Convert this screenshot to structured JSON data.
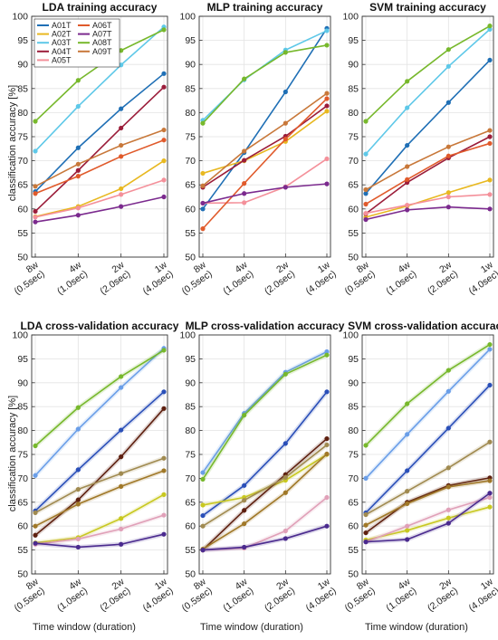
{
  "figure": {
    "ylabel": "classification accuracy [%]",
    "xlabel": "Time window (duration)"
  },
  "legend": {
    "entries": [
      {
        "name": "A01T",
        "color": "#1f6fb5"
      },
      {
        "name": "A02T",
        "color": "#e8b820"
      },
      {
        "name": "A03T",
        "color": "#5ec8e8"
      },
      {
        "name": "A04T",
        "color": "#9b1d3a"
      },
      {
        "name": "A05T",
        "color": "#f4909a"
      },
      {
        "name": "A06T",
        "color": "#e05a2b"
      },
      {
        "name": "A07T",
        "color": "#7b2a8e"
      },
      {
        "name": "A08T",
        "color": "#77b82c"
      },
      {
        "name": "A09T",
        "color": "#c8783a"
      }
    ]
  },
  "chart_data": [
    {
      "type": "line",
      "title": "LDA training accuracy",
      "categories": [
        "8w (0.5sec)",
        "4w (1.0sec)",
        "2w (2.0sec)",
        "1w (4.0sec)"
      ],
      "ylim": [
        50,
        100
      ],
      "yticks": [
        50,
        55,
        60,
        65,
        70,
        75,
        80,
        85,
        90,
        95,
        100
      ],
      "grid": true,
      "legend": "top-left",
      "series": [
        {
          "name": "A01T",
          "color": "#1f6fb5",
          "values": [
            63.6,
            72.7,
            80.8,
            88.1
          ]
        },
        {
          "name": "A02T",
          "color": "#e8b820",
          "values": [
            58.4,
            60.5,
            64.2,
            70.0
          ]
        },
        {
          "name": "A03T",
          "color": "#5ec8e8",
          "values": [
            72.0,
            81.3,
            89.9,
            97.8
          ]
        },
        {
          "name": "A04T",
          "color": "#9b1d3a",
          "values": [
            59.5,
            68.0,
            76.8,
            85.3
          ]
        },
        {
          "name": "A05T",
          "color": "#f4909a",
          "values": [
            58.3,
            60.2,
            63.0,
            66.0
          ]
        },
        {
          "name": "A06T",
          "color": "#e05a2b",
          "values": [
            63.2,
            66.8,
            70.9,
            74.3
          ]
        },
        {
          "name": "A07T",
          "color": "#7b2a8e",
          "values": [
            57.3,
            58.7,
            60.5,
            62.5
          ]
        },
        {
          "name": "A08T",
          "color": "#77b82c",
          "values": [
            78.2,
            86.7,
            92.9,
            97.2
          ]
        },
        {
          "name": "A09T",
          "color": "#c8783a",
          "values": [
            64.7,
            69.3,
            73.2,
            76.4
          ]
        }
      ]
    },
    {
      "type": "line",
      "title": "MLP training accuracy",
      "categories": [
        "8w (0.5sec)",
        "4w (1.0sec)",
        "2w (2.0sec)",
        "1w (4.0sec)"
      ],
      "ylim": [
        50,
        100
      ],
      "yticks": [
        50,
        55,
        60,
        65,
        70,
        75,
        80,
        85,
        90,
        95,
        100
      ],
      "grid": true,
      "series": [
        {
          "name": "A01T",
          "color": "#1f6fb5",
          "values": [
            60.0,
            71.7,
            84.3,
            97.5
          ]
        },
        {
          "name": "A02T",
          "color": "#e8b820",
          "values": [
            67.4,
            70.0,
            74.0,
            80.3
          ]
        },
        {
          "name": "A03T",
          "color": "#5ec8e8",
          "values": [
            78.4,
            86.8,
            93.0,
            97.0
          ]
        },
        {
          "name": "A04T",
          "color": "#9b1d3a",
          "values": [
            64.5,
            70.1,
            75.1,
            81.4
          ]
        },
        {
          "name": "A05T",
          "color": "#f4909a",
          "values": [
            61.2,
            61.3,
            64.6,
            70.4
          ]
        },
        {
          "name": "A06T",
          "color": "#e05a2b",
          "values": [
            55.9,
            65.3,
            74.5,
            82.9
          ]
        },
        {
          "name": "A07T",
          "color": "#7b2a8e",
          "values": [
            61.2,
            63.2,
            64.5,
            65.2
          ]
        },
        {
          "name": "A08T",
          "color": "#77b82c",
          "values": [
            77.8,
            87.0,
            92.5,
            94.0
          ]
        },
        {
          "name": "A09T",
          "color": "#c8783a",
          "values": [
            64.8,
            72.0,
            77.8,
            84.0
          ]
        }
      ]
    },
    {
      "type": "line",
      "title": "SVM  training accuracy",
      "categories": [
        "8w (0.5sec)",
        "4w (1.0sec)",
        "2w (2.0sec)",
        "1w (4.0sec)"
      ],
      "ylim": [
        50,
        100
      ],
      "yticks": [
        50,
        55,
        60,
        65,
        70,
        75,
        80,
        85,
        90,
        95,
        100
      ],
      "grid": true,
      "series": [
        {
          "name": "A01T",
          "color": "#1f6fb5",
          "values": [
            63.2,
            73.2,
            82.1,
            90.9
          ]
        },
        {
          "name": "A02T",
          "color": "#e8b820",
          "values": [
            58.3,
            60.6,
            63.4,
            66.0
          ]
        },
        {
          "name": "A03T",
          "color": "#5ec8e8",
          "values": [
            71.4,
            81.0,
            89.6,
            97.3
          ]
        },
        {
          "name": "A04T",
          "color": "#9b1d3a",
          "values": [
            59.0,
            65.5,
            70.6,
            75.0
          ]
        },
        {
          "name": "A05T",
          "color": "#f4909a",
          "values": [
            59.1,
            60.8,
            62.5,
            63.0
          ]
        },
        {
          "name": "A06T",
          "color": "#e05a2b",
          "values": [
            61.0,
            66.1,
            71.0,
            73.6
          ]
        },
        {
          "name": "A07T",
          "color": "#7b2a8e",
          "values": [
            57.8,
            59.8,
            60.4,
            60.0
          ]
        },
        {
          "name": "A08T",
          "color": "#77b82c",
          "values": [
            78.2,
            86.5,
            93.1,
            98.0
          ]
        },
        {
          "name": "A09T",
          "color": "#c8783a",
          "values": [
            64.0,
            68.8,
            72.9,
            76.3
          ]
        }
      ]
    },
    {
      "type": "line",
      "title": "LDA cross-validation accuracy",
      "categories": [
        "8w (0.5sec)",
        "4w (1.0sec)",
        "2w (2.0sec)",
        "1w (4.0sec)"
      ],
      "ylim": [
        50,
        100
      ],
      "yticks": [
        50,
        55,
        60,
        65,
        70,
        75,
        80,
        85,
        90,
        95,
        100
      ],
      "grid": true,
      "series": [
        {
          "name": "A01T",
          "color": "#2a4fb8",
          "values": [
            63.2,
            71.8,
            80.1,
            88.1
          ]
        },
        {
          "name": "A02T",
          "color": "#c8c820",
          "values": [
            56.5,
            57.6,
            61.6,
            66.6
          ]
        },
        {
          "name": "A03T",
          "color": "#6a9ee8",
          "values": [
            70.6,
            80.3,
            89.0,
            97.2
          ]
        },
        {
          "name": "A04T",
          "color": "#5e2010",
          "values": [
            58.1,
            65.5,
            74.5,
            84.6
          ]
        },
        {
          "name": "A05T",
          "color": "#e0a0b8",
          "values": [
            56.2,
            57.3,
            59.4,
            62.3
          ]
        },
        {
          "name": "A06T",
          "color": "#a07828",
          "values": [
            60.0,
            64.6,
            68.3,
            71.6
          ]
        },
        {
          "name": "A07T",
          "color": "#4a2a8e",
          "values": [
            56.4,
            55.6,
            56.2,
            58.3
          ]
        },
        {
          "name": "A08T",
          "color": "#77b82c",
          "values": [
            76.8,
            84.8,
            91.3,
            96.8
          ]
        },
        {
          "name": "A09T",
          "color": "#a08a50",
          "values": [
            62.8,
            67.7,
            71.0,
            74.2
          ]
        }
      ]
    },
    {
      "type": "line",
      "title": "MLP cross-validation accuracy",
      "categories": [
        "8w (0.5sec)",
        "4w (1.0sec)",
        "2w (2.0sec)",
        "1w (4.0sec)"
      ],
      "ylim": [
        50,
        100
      ],
      "yticks": [
        50,
        55,
        60,
        65,
        70,
        75,
        80,
        85,
        90,
        95,
        100
      ],
      "grid": true,
      "series": [
        {
          "name": "A01T",
          "color": "#2a4fb8",
          "values": [
            62.2,
            68.5,
            77.3,
            88.1
          ]
        },
        {
          "name": "A02T",
          "color": "#c8c820",
          "values": [
            64.4,
            66.0,
            69.6,
            75.0
          ]
        },
        {
          "name": "A03T",
          "color": "#6a9ee8",
          "values": [
            71.2,
            83.6,
            92.2,
            96.5
          ]
        },
        {
          "name": "A04T",
          "color": "#5e2010",
          "values": [
            55.0,
            63.3,
            70.8,
            78.3
          ]
        },
        {
          "name": "A05T",
          "color": "#e0a0b8",
          "values": [
            55.0,
            55.4,
            59.0,
            66.0
          ]
        },
        {
          "name": "A06T",
          "color": "#a07828",
          "values": [
            55.2,
            60.5,
            67.0,
            75.1
          ]
        },
        {
          "name": "A07T",
          "color": "#4a2a8e",
          "values": [
            55.0,
            55.6,
            57.4,
            60.0
          ]
        },
        {
          "name": "A08T",
          "color": "#77b82c",
          "values": [
            69.8,
            83.2,
            91.8,
            95.8
          ]
        },
        {
          "name": "A09T",
          "color": "#a08a50",
          "values": [
            60.0,
            65.4,
            70.2,
            77.0
          ]
        }
      ]
    },
    {
      "type": "line",
      "title": "SVM cross-validation accuracy",
      "categories": [
        "8w (0.5sec)",
        "4w (1.0sec)",
        "2w (2.0sec)",
        "1w (4.0sec)"
      ],
      "ylim": [
        50,
        100
      ],
      "yticks": [
        50,
        55,
        60,
        65,
        70,
        75,
        80,
        85,
        90,
        95,
        100
      ],
      "grid": true,
      "series": [
        {
          "name": "A01T",
          "color": "#2a4fb8",
          "values": [
            62.8,
            71.6,
            80.5,
            89.5
          ]
        },
        {
          "name": "A02T",
          "color": "#c8c820",
          "values": [
            57.1,
            59.1,
            61.7,
            64.0
          ]
        },
        {
          "name": "A03T",
          "color": "#6a9ee8",
          "values": [
            70.0,
            79.2,
            88.2,
            97.0
          ]
        },
        {
          "name": "A04T",
          "color": "#5e2010",
          "values": [
            58.6,
            65.0,
            68.5,
            70.1
          ]
        },
        {
          "name": "A05T",
          "color": "#e0a0b8",
          "values": [
            56.7,
            60.0,
            63.4,
            66.0
          ]
        },
        {
          "name": "A06T",
          "color": "#a07828",
          "values": [
            60.2,
            64.7,
            68.2,
            69.5
          ]
        },
        {
          "name": "A07T",
          "color": "#4a2a8e",
          "values": [
            56.7,
            57.2,
            60.6,
            66.9
          ]
        },
        {
          "name": "A08T",
          "color": "#77b82c",
          "values": [
            76.9,
            85.6,
            92.6,
            98.0
          ]
        },
        {
          "name": "A09T",
          "color": "#a08a50",
          "values": [
            62.4,
            67.3,
            72.2,
            77.6
          ]
        }
      ]
    }
  ]
}
